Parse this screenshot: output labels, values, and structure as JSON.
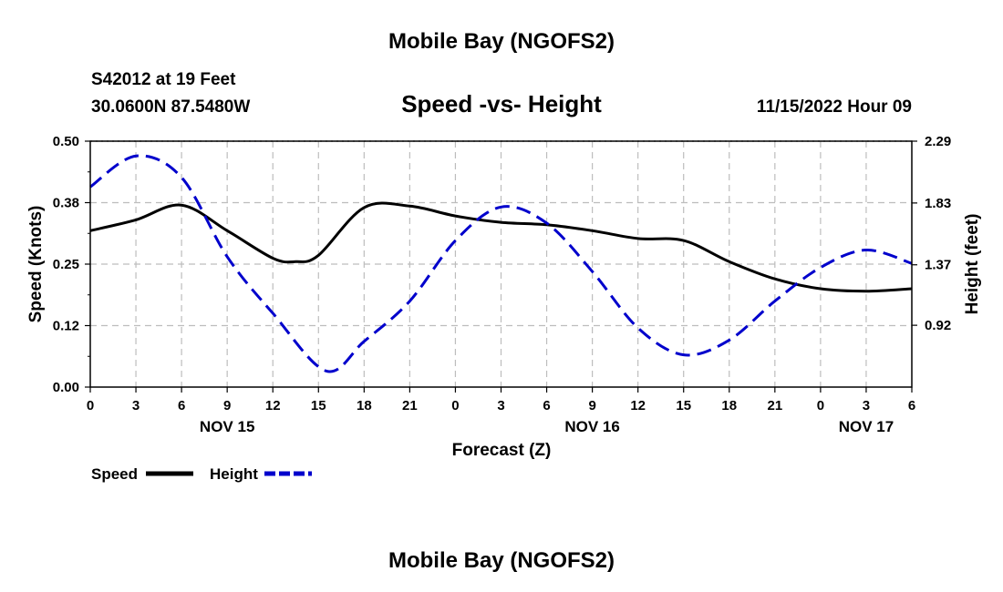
{
  "header": {
    "title": "Mobile Bay (NGOFS2)",
    "station": "S42012 at 19 Feet",
    "coords": "30.0600N  87.5480W",
    "subtitle": "Speed -vs- Height",
    "timestamp": "11/15/2022 Hour 09"
  },
  "footer": {
    "title": "Mobile Bay (NGOFS2)"
  },
  "chart_data": {
    "type": "line",
    "title": "Speed -vs- Height",
    "xlabel": "Forecast (Z)",
    "ylabel": "Speed (Knots)",
    "ylabel_right": "Height (feet)",
    "x_tick_labels": [
      "0",
      "3",
      "6",
      "9",
      "12",
      "15",
      "18",
      "21",
      "0",
      "3",
      "6",
      "9",
      "12",
      "15",
      "18",
      "21",
      "0",
      "3",
      "6"
    ],
    "date_labels": [
      {
        "label": "NOV 15",
        "at_hour": 9
      },
      {
        "label": "NOV 16",
        "at_hour": 33
      },
      {
        "label": "NOV 17",
        "at_hour": 51
      }
    ],
    "xlim": [
      0,
      54
    ],
    "ylim": [
      0,
      0.5
    ],
    "ylim_right": [
      0.46,
      2.29
    ],
    "y_ticks": [
      "0.00",
      "0.12",
      "0.25",
      "0.38",
      "0.50"
    ],
    "y_tick_values": [
      0,
      0.125,
      0.25,
      0.375,
      0.5
    ],
    "y_ticks_right": [
      "0.92",
      "1.37",
      "1.83",
      "2.29"
    ],
    "y_tick_values_right": [
      0.92,
      1.37,
      1.83,
      2.29
    ],
    "grid": true,
    "legend": "bottom-left",
    "series": [
      {
        "name": "Speed",
        "axis": "left",
        "color": "#000000",
        "style": "solid",
        "x": [
          0,
          3,
          6,
          9,
          12,
          13.5,
          15,
          18,
          21,
          24,
          27,
          30,
          33,
          36,
          39,
          42,
          45,
          48,
          51,
          54
        ],
        "values": [
          0.318,
          0.34,
          0.37,
          0.318,
          0.262,
          0.255,
          0.268,
          0.365,
          0.368,
          0.348,
          0.335,
          0.33,
          0.318,
          0.302,
          0.298,
          0.255,
          0.22,
          0.2,
          0.195,
          0.2
        ]
      },
      {
        "name": "Height",
        "axis": "right",
        "color": "#0000cc",
        "style": "dashed",
        "x": [
          0,
          3,
          6,
          9,
          12,
          15.5,
          18,
          21,
          24,
          27,
          30,
          33,
          36,
          39,
          42,
          45,
          48,
          51,
          54
        ],
        "values": [
          1.95,
          2.18,
          2.02,
          1.43,
          1.01,
          0.58,
          0.8,
          1.1,
          1.55,
          1.8,
          1.68,
          1.32,
          0.9,
          0.7,
          0.81,
          1.1,
          1.35,
          1.48,
          1.38
        ]
      }
    ]
  }
}
